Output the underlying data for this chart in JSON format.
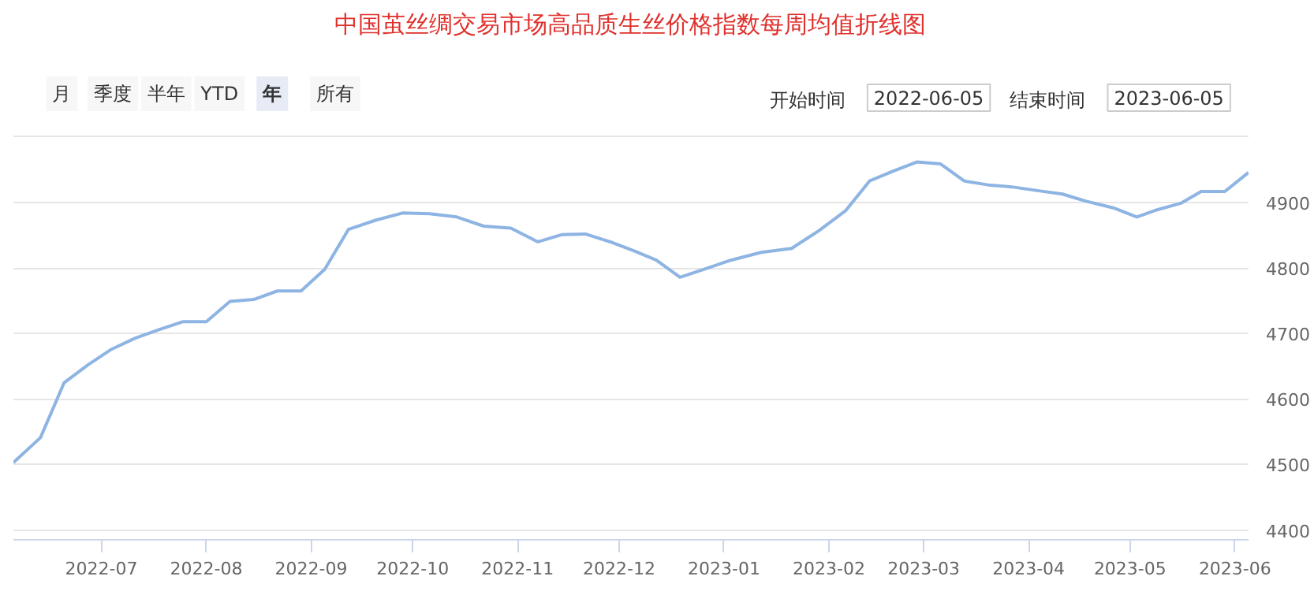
{
  "chart_data": {
    "type": "line",
    "title": "中国茧丝绸交易市场高品质生丝价格指数每周均值折线图",
    "annotations": [
      "月",
      "季度",
      "半年",
      "YTD",
      "年",
      "所有",
      "开始时间",
      "2022-06-05",
      "结束时间",
      "2023-06-05"
    ],
    "x": [
      "2022-06-05",
      "2022-06-13",
      "2022-06-20",
      "2022-06-27",
      "2022-07-04",
      "2022-07-11",
      "2022-07-18",
      "2022-07-25",
      "2022-08-01",
      "2022-08-08",
      "2022-08-15",
      "2022-08-22",
      "2022-08-29",
      "2022-09-05",
      "2022-09-12",
      "2022-09-20",
      "2022-09-28",
      "2022-10-06",
      "2022-10-14",
      "2022-10-22",
      "2022-10-30",
      "2022-11-07",
      "2022-11-14",
      "2022-11-21",
      "2022-11-29",
      "2022-12-06",
      "2022-12-12",
      "2022-12-19",
      "2022-12-26",
      "2023-01-03",
      "2023-01-12",
      "2023-01-21",
      "2023-01-29",
      "2023-02-06",
      "2023-02-13",
      "2023-02-20",
      "2023-02-27",
      "2023-03-06",
      "2023-03-13",
      "2023-03-20",
      "2023-03-27",
      "2023-04-04",
      "2023-04-11",
      "2023-04-18",
      "2023-04-26",
      "2023-05-03",
      "2023-05-09",
      "2023-05-16",
      "2023-05-22",
      "2023-05-29",
      "2023-06-05"
    ],
    "series": [
      {
        "color": "#8db4e2",
        "values": [
          4503,
          4541,
          4625,
          4652,
          4676,
          4693,
          4706,
          4718,
          4718,
          4749,
          4752,
          4765,
          4765,
          4798,
          4859,
          4873,
          4884,
          4883,
          4878,
          4864,
          4861,
          4840,
          4851,
          4852,
          4839,
          4825,
          4812,
          4786,
          4798,
          4812,
          4824,
          4830,
          4857,
          4888,
          4933,
          4948,
          4962,
          4959,
          4933,
          4927,
          4924,
          4918,
          4913,
          4902,
          4892,
          4878,
          4889,
          4899,
          4917,
          4917,
          4946
        ]
      }
    ],
    "xlim": [
      "2022-06-05",
      "2023-06-05"
    ],
    "xticks": [
      {
        "value": "2022-07-01",
        "label": "2022-07"
      },
      {
        "value": "2022-08-01",
        "label": "2022-08"
      },
      {
        "value": "2022-09-01",
        "label": "2022-09"
      },
      {
        "value": "2022-10-01",
        "label": "2022-10"
      },
      {
        "value": "2022-11-01",
        "label": "2022-11"
      },
      {
        "value": "2022-12-01",
        "label": "2022-12"
      },
      {
        "value": "2023-01-01",
        "label": "2023-01"
      },
      {
        "value": "2023-02-01",
        "label": "2023-02"
      },
      {
        "value": "2023-03-01",
        "label": "2023-03"
      },
      {
        "value": "2023-04-01",
        "label": "2023-04"
      },
      {
        "value": "2023-05-01",
        "label": "2023-05"
      },
      {
        "value": "2023-06-01",
        "label": "2023-06"
      }
    ],
    "ylim": [
      4385,
      5006
    ],
    "yticks": [
      4400,
      4500,
      4600,
      4700,
      4800,
      4900,
      {
        "value": 5000,
        "label": null
      }
    ],
    "grid": "y",
    "marker": "none",
    "line_style": "solid"
  }
}
